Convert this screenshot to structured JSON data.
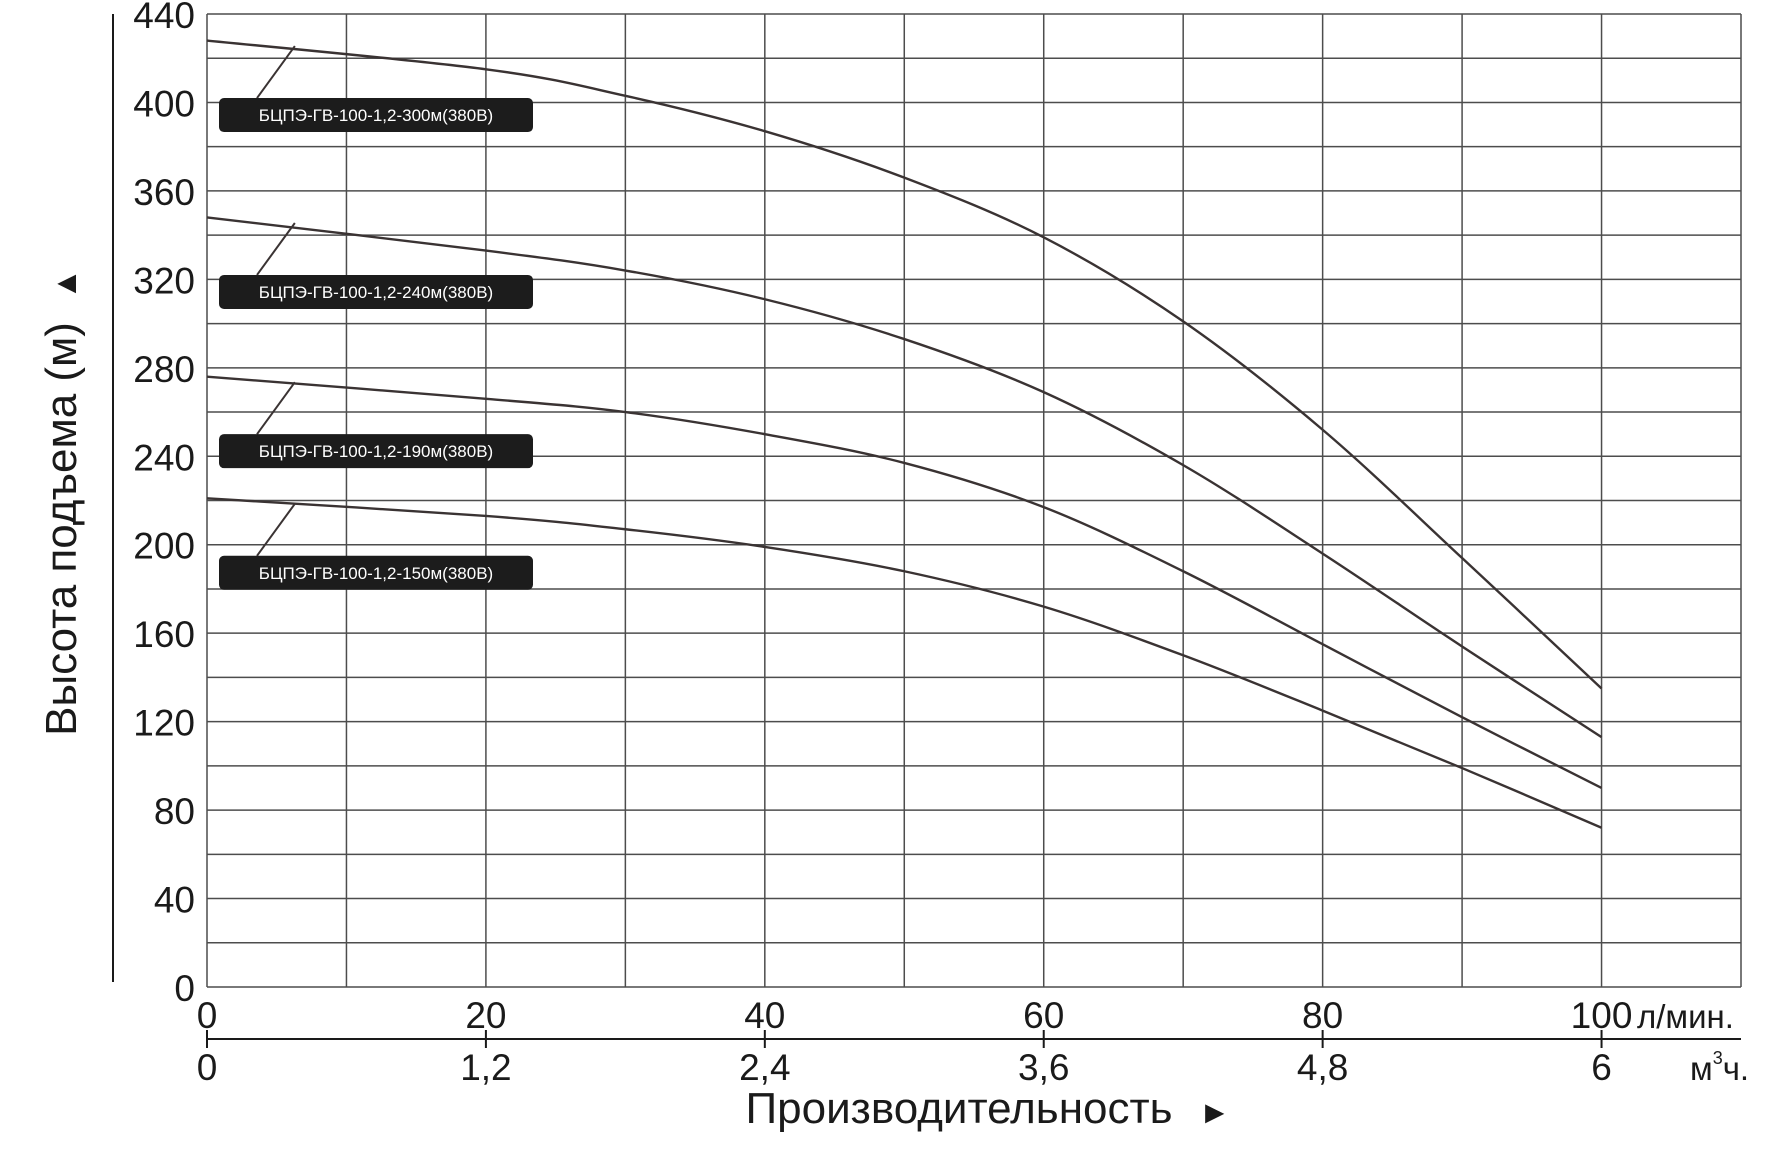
{
  "chart_data": {
    "type": "line",
    "title": "",
    "ylabel": "Высота подъема (м)",
    "ylabel_arrow": "▲",
    "xlabel": "Производительность",
    "xlabel_arrow": "►",
    "ylim": [
      0,
      440
    ],
    "xlim": [
      0,
      110
    ],
    "y_ticks": [
      "0",
      "40",
      "80",
      "120",
      "160",
      "200",
      "240",
      "280",
      "320",
      "360",
      "400",
      "440"
    ],
    "x_ticks_lpm": [
      "0",
      "20",
      "40",
      "60",
      "80",
      "100"
    ],
    "x_unit_lpm": "л/мин.",
    "x_ticks_m3h": [
      "0",
      "1,2",
      "2,4",
      "3,6",
      "4,8",
      "6"
    ],
    "x_unit_m3h_base": "м",
    "x_unit_m3h_sup": "3",
    "x_unit_m3h_tail": "ч.",
    "grid": true,
    "series": [
      {
        "name": "БЦПЭ-ГВ-100-1,2-300м(380В)",
        "x": [
          0,
          20,
          30,
          40,
          50,
          60,
          70,
          80,
          90,
          100
        ],
        "y": [
          428,
          415,
          403,
          387,
          366,
          339,
          301,
          252,
          194,
          135
        ]
      },
      {
        "name": "БЦПЭ-ГВ-100-1,2-240м(380В)",
        "x": [
          0,
          20,
          30,
          40,
          50,
          60,
          70,
          80,
          90,
          100
        ],
        "y": [
          348,
          333,
          324,
          311,
          293,
          269,
          236,
          196,
          154,
          113
        ]
      },
      {
        "name": "БЦПЭ-ГВ-100-1,2-190м(380В)",
        "x": [
          0,
          20,
          30,
          40,
          50,
          60,
          70,
          80,
          90,
          100
        ],
        "y": [
          276,
          266,
          260,
          250,
          237,
          217,
          188,
          155,
          122,
          90
        ]
      },
      {
        "name": "БЦПЭ-ГВ-100-1,2-150м(380В)",
        "x": [
          0,
          20,
          30,
          40,
          50,
          60,
          70,
          80,
          90,
          100
        ],
        "y": [
          221,
          213,
          207,
          199,
          188,
          172,
          150,
          125,
          99,
          72
        ]
      }
    ]
  }
}
